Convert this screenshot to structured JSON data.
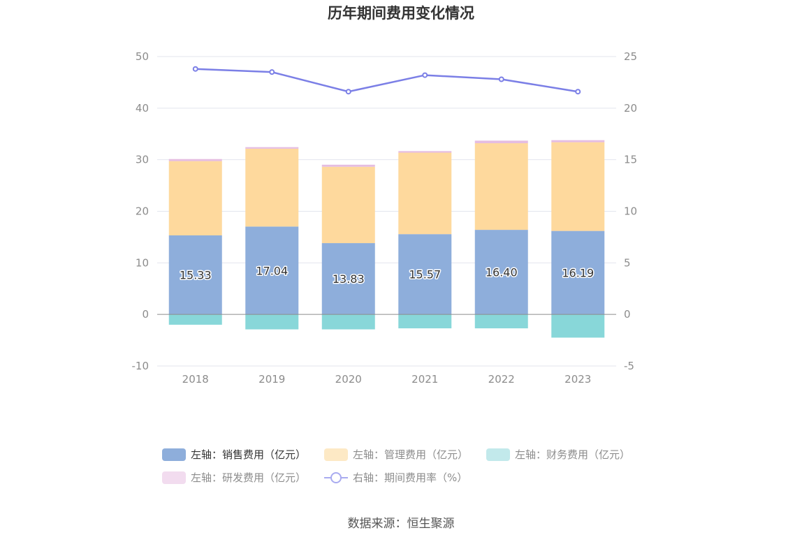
{
  "chart_data": {
    "type": "bar",
    "title": "历年期间费用变化情况",
    "categories": [
      "2018",
      "2019",
      "2020",
      "2021",
      "2022",
      "2023"
    ],
    "series": [
      {
        "name": "左轴：销售费用（亿元）",
        "axis": "left",
        "kind": "bar",
        "color": "#8eaedb",
        "values": [
          15.33,
          17.04,
          13.83,
          15.57,
          16.4,
          16.19
        ],
        "labels": [
          "15.33",
          "17.04",
          "13.83",
          "15.57",
          "16.40",
          "16.19"
        ]
      },
      {
        "name": "左轴：管理费用（亿元）",
        "axis": "left",
        "kind": "bar",
        "color": "#fed99d",
        "values": [
          14.4,
          15.1,
          14.8,
          15.8,
          16.8,
          17.2
        ]
      },
      {
        "name": "左轴：财务费用（亿元）",
        "axis": "left",
        "kind": "bar",
        "color": "#88d7d9",
        "values": [
          -2.0,
          -2.9,
          -2.9,
          -2.7,
          -2.7,
          -4.5
        ]
      },
      {
        "name": "左轴：研发费用（亿元）",
        "axis": "left",
        "kind": "bar",
        "color": "#e5bde1",
        "values": [
          0.4,
          0.3,
          0.4,
          0.3,
          0.5,
          0.4
        ]
      },
      {
        "name": "右轴：期间费用率（%）",
        "axis": "right",
        "kind": "line",
        "color": "#7b7fe6",
        "values": [
          23.8,
          23.5,
          21.6,
          23.2,
          22.8,
          21.6
        ]
      }
    ],
    "left_axis": {
      "min": -10,
      "max": 50,
      "ticks": [
        "-10",
        "0",
        "10",
        "20",
        "30",
        "40",
        "50"
      ]
    },
    "right_axis": {
      "min": -5,
      "max": 25,
      "ticks": [
        "-5",
        "0",
        "5",
        "10",
        "15",
        "20",
        "25"
      ]
    },
    "grid": true,
    "legend_position": "bottom",
    "legend_swatch_colors": [
      "#8eaedb",
      "#fde9c5",
      "#c2e9eb",
      "#f2dcef",
      "#a9abf0"
    ]
  },
  "source": "数据来源：恒生聚源"
}
